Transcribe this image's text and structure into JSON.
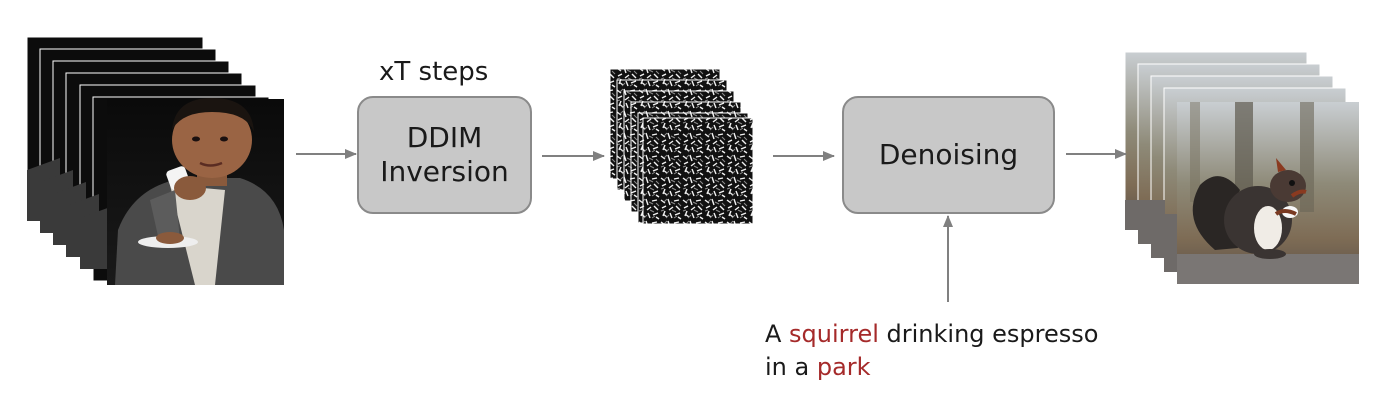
{
  "steps_label": "xT steps",
  "inversion_box": {
    "line1": "DDIM",
    "line2": "Inversion"
  },
  "denoising_box": {
    "label": "Denoising"
  },
  "prompt": {
    "line1_pre": "A ",
    "line1_kw": "squirrel",
    "line1_post": " drinking espresso",
    "line2_pre": "in a ",
    "line2_kw": "park"
  },
  "colors": {
    "keyword": "#a52a2a",
    "box_fill": "#c8c8c8",
    "box_border": "#8a8a8a",
    "arrow": "#808080"
  },
  "images": {
    "input_frames": "boy-video-frames",
    "noise_frames": "noise-latent-frames",
    "output_frames": "squirrel-video-frames"
  }
}
